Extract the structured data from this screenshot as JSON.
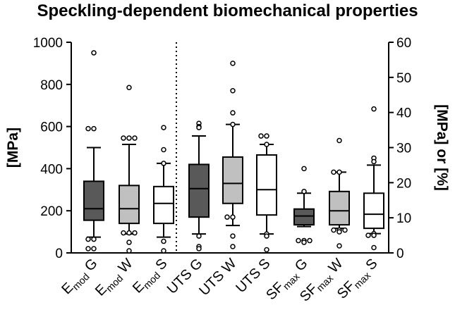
{
  "chart_data": {
    "type": "box",
    "title": "Speckling-dependent biomechanical properties",
    "ylabel_left": "[MPa]",
    "ylabel_right": "[MPa] or [%]",
    "ylim_left": [
      0,
      1000
    ],
    "ylim_right": [
      0,
      60
    ],
    "yticks_left": [
      "0",
      "200",
      "400",
      "600",
      "800",
      "1000"
    ],
    "yticks_right": [
      "0",
      "10",
      "20",
      "30",
      "40",
      "50",
      "60"
    ],
    "colors": {
      "G": "#595959",
      "W": "#c0c0c0",
      "S": "#ffffff",
      "axis": "#000000"
    },
    "categories": [
      {
        "main": "E",
        "sub": "mod",
        "suffix": " G",
        "group": "G",
        "axis": "left",
        "whisker_low": 75,
        "q1": 155,
        "median": 210,
        "q3": 340,
        "whisker_high": 500,
        "outliers": [
          950,
          590,
          590,
          65,
          65,
          20,
          20
        ]
      },
      {
        "main": "E",
        "sub": "mod",
        "suffix": " W",
        "group": "W",
        "axis": "left",
        "whisker_low": 90,
        "q1": 140,
        "median": 210,
        "q3": 320,
        "whisker_high": 515,
        "outliers": [
          785,
          545,
          545,
          545,
          95,
          95,
          95,
          50,
          10
        ]
      },
      {
        "main": "E",
        "sub": "mod",
        "suffix": " S",
        "group": "S",
        "axis": "left",
        "whisker_low": 75,
        "q1": 140,
        "median": 235,
        "q3": 315,
        "whisker_high": 425,
        "outliers": [
          595,
          490,
          425,
          55,
          10
        ]
      },
      {
        "main": "UTS",
        "sub": "",
        "suffix": " G",
        "group": "G",
        "axis": "left",
        "whisker_low": 90,
        "q1": 170,
        "median": 305,
        "q3": 420,
        "whisker_high": 555,
        "outliers": [
          615,
          600,
          595,
          80,
          30,
          20
        ]
      },
      {
        "main": "UTS",
        "sub": "",
        "suffix": " W",
        "group": "W",
        "axis": "left",
        "whisker_low": 130,
        "q1": 235,
        "median": 330,
        "q3": 455,
        "whisker_high": 610,
        "outliers": [
          900,
          770,
          665,
          610,
          170,
          170,
          80,
          30
        ]
      },
      {
        "main": "UTS",
        "sub": "",
        "suffix": " S",
        "group": "S",
        "axis": "left",
        "whisker_low": 90,
        "q1": 180,
        "median": 300,
        "q3": 465,
        "whisker_high": 515,
        "outliers": [
          555,
          555,
          515,
          90,
          80,
          15
        ]
      },
      {
        "main": "SF",
        "sub": "max",
        "suffix": " G",
        "group": "G",
        "axis": "right",
        "whisker_low": 7.5,
        "q1": 8,
        "median": 10.5,
        "q3": 12.5,
        "whisker_high": 17,
        "outliers": [
          24,
          17.5,
          3.5,
          3.5,
          3.5,
          3
        ]
      },
      {
        "main": "SF",
        "sub": "max",
        "suffix": " W",
        "group": "W",
        "axis": "right",
        "whisker_low": 7,
        "q1": 8,
        "median": 12,
        "q3": 17.5,
        "whisker_high": 23,
        "outliers": [
          32,
          23,
          23,
          6.5,
          6.5,
          6.5,
          6,
          2
        ]
      },
      {
        "main": "SF",
        "sub": "max",
        "suffix": " S",
        "group": "S",
        "axis": "right",
        "whisker_low": 5.5,
        "q1": 7,
        "median": 11,
        "q3": 17,
        "whisker_high": 25,
        "outliers": [
          41,
          27,
          26,
          5.5,
          5,
          5,
          1.5
        ]
      }
    ]
  }
}
